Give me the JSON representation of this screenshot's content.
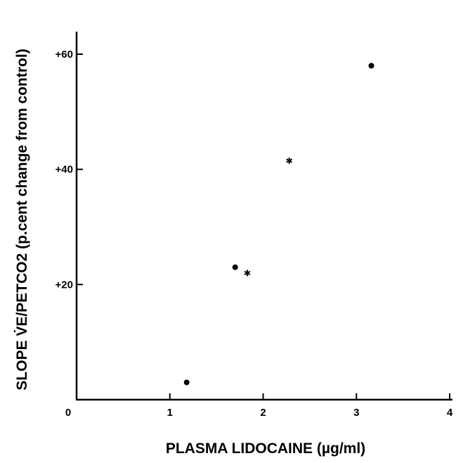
{
  "chart_data": {
    "type": "scatter",
    "title": "",
    "xlabel": "PLASMA LIDOCAINE (µg/ml)",
    "ylabel": "SLOPE V̇E/PETCO2 (p.cent change from control)",
    "xlim": [
      0,
      4
    ],
    "ylim": [
      0,
      60
    ],
    "grid": false,
    "x_ticks": [
      {
        "value": 0,
        "label": "0"
      },
      {
        "value": 1,
        "label": "1"
      },
      {
        "value": 2,
        "label": "2"
      },
      {
        "value": 3,
        "label": "3"
      },
      {
        "value": 4,
        "label": "4"
      }
    ],
    "y_ticks": [
      {
        "value": 20,
        "label": "+20"
      },
      {
        "value": 40,
        "label": "+40"
      },
      {
        "value": 60,
        "label": "+60"
      }
    ],
    "series": [
      {
        "marker": "dot",
        "points": [
          {
            "x": 1.18,
            "y": 3
          },
          {
            "x": 1.7,
            "y": 23
          },
          {
            "x": 3.16,
            "y": 58
          }
        ]
      },
      {
        "marker": "star",
        "points": [
          {
            "x": 1.83,
            "y": 22
          },
          {
            "x": 2.28,
            "y": 41.5
          }
        ]
      }
    ],
    "color": "#000000"
  }
}
